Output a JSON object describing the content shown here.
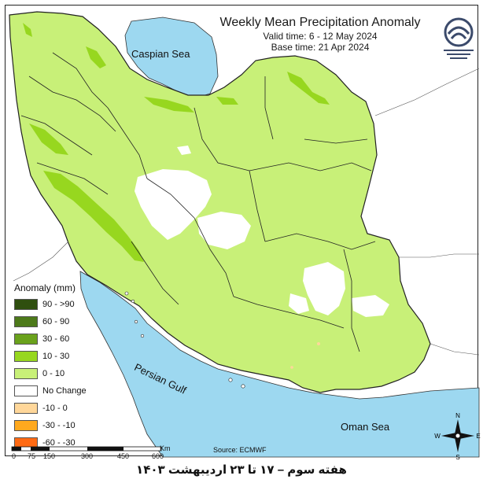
{
  "header": {
    "title": "Weekly Mean Precipitation Anomaly",
    "valid_time": "Valid time: 6 - 12 May 2024",
    "base_time": "Base time: 21 Apr 2024"
  },
  "labels": {
    "caspian": "Caspian Sea",
    "persian_gulf": "Persian Gulf",
    "oman_sea": "Oman Sea",
    "source": "Source: ECMWF"
  },
  "legend": {
    "title": "Anomaly (mm)",
    "items": [
      {
        "label": "90 - >90",
        "color": "#2f4f0f"
      },
      {
        "label": "60 - 90",
        "color": "#4d7a1a"
      },
      {
        "label": "30 - 60",
        "color": "#6aa21c"
      },
      {
        "label": "10 - 30",
        "color": "#97d71f"
      },
      {
        "label": "0 - 10",
        "color": "#c8f078"
      },
      {
        "label": "No Change",
        "color": "#ffffff"
      },
      {
        "label": "-10 - 0",
        "color": "#ffd79a"
      },
      {
        "label": "-30 - -10",
        "color": "#ffa91e"
      },
      {
        "label": "-60 - -30",
        "color": "#ff6a13"
      }
    ]
  },
  "scale": {
    "ticks": [
      "0",
      "75",
      "150",
      "300",
      "450",
      "600"
    ],
    "unit": "Km"
  },
  "compass": {
    "n": "N",
    "e": "E",
    "s": "S",
    "w": "W"
  },
  "footer": {
    "text": "هفته سوم – ۱۷ تا ۲۳ اردیبهشت ۱۴۰۳"
  },
  "colors": {
    "water": "#9dd8f0",
    "land_anomaly_0_10": "#c8f078",
    "land_anomaly_10_30": "#97d71f",
    "no_change": "#ffffff",
    "border": "#222222"
  }
}
